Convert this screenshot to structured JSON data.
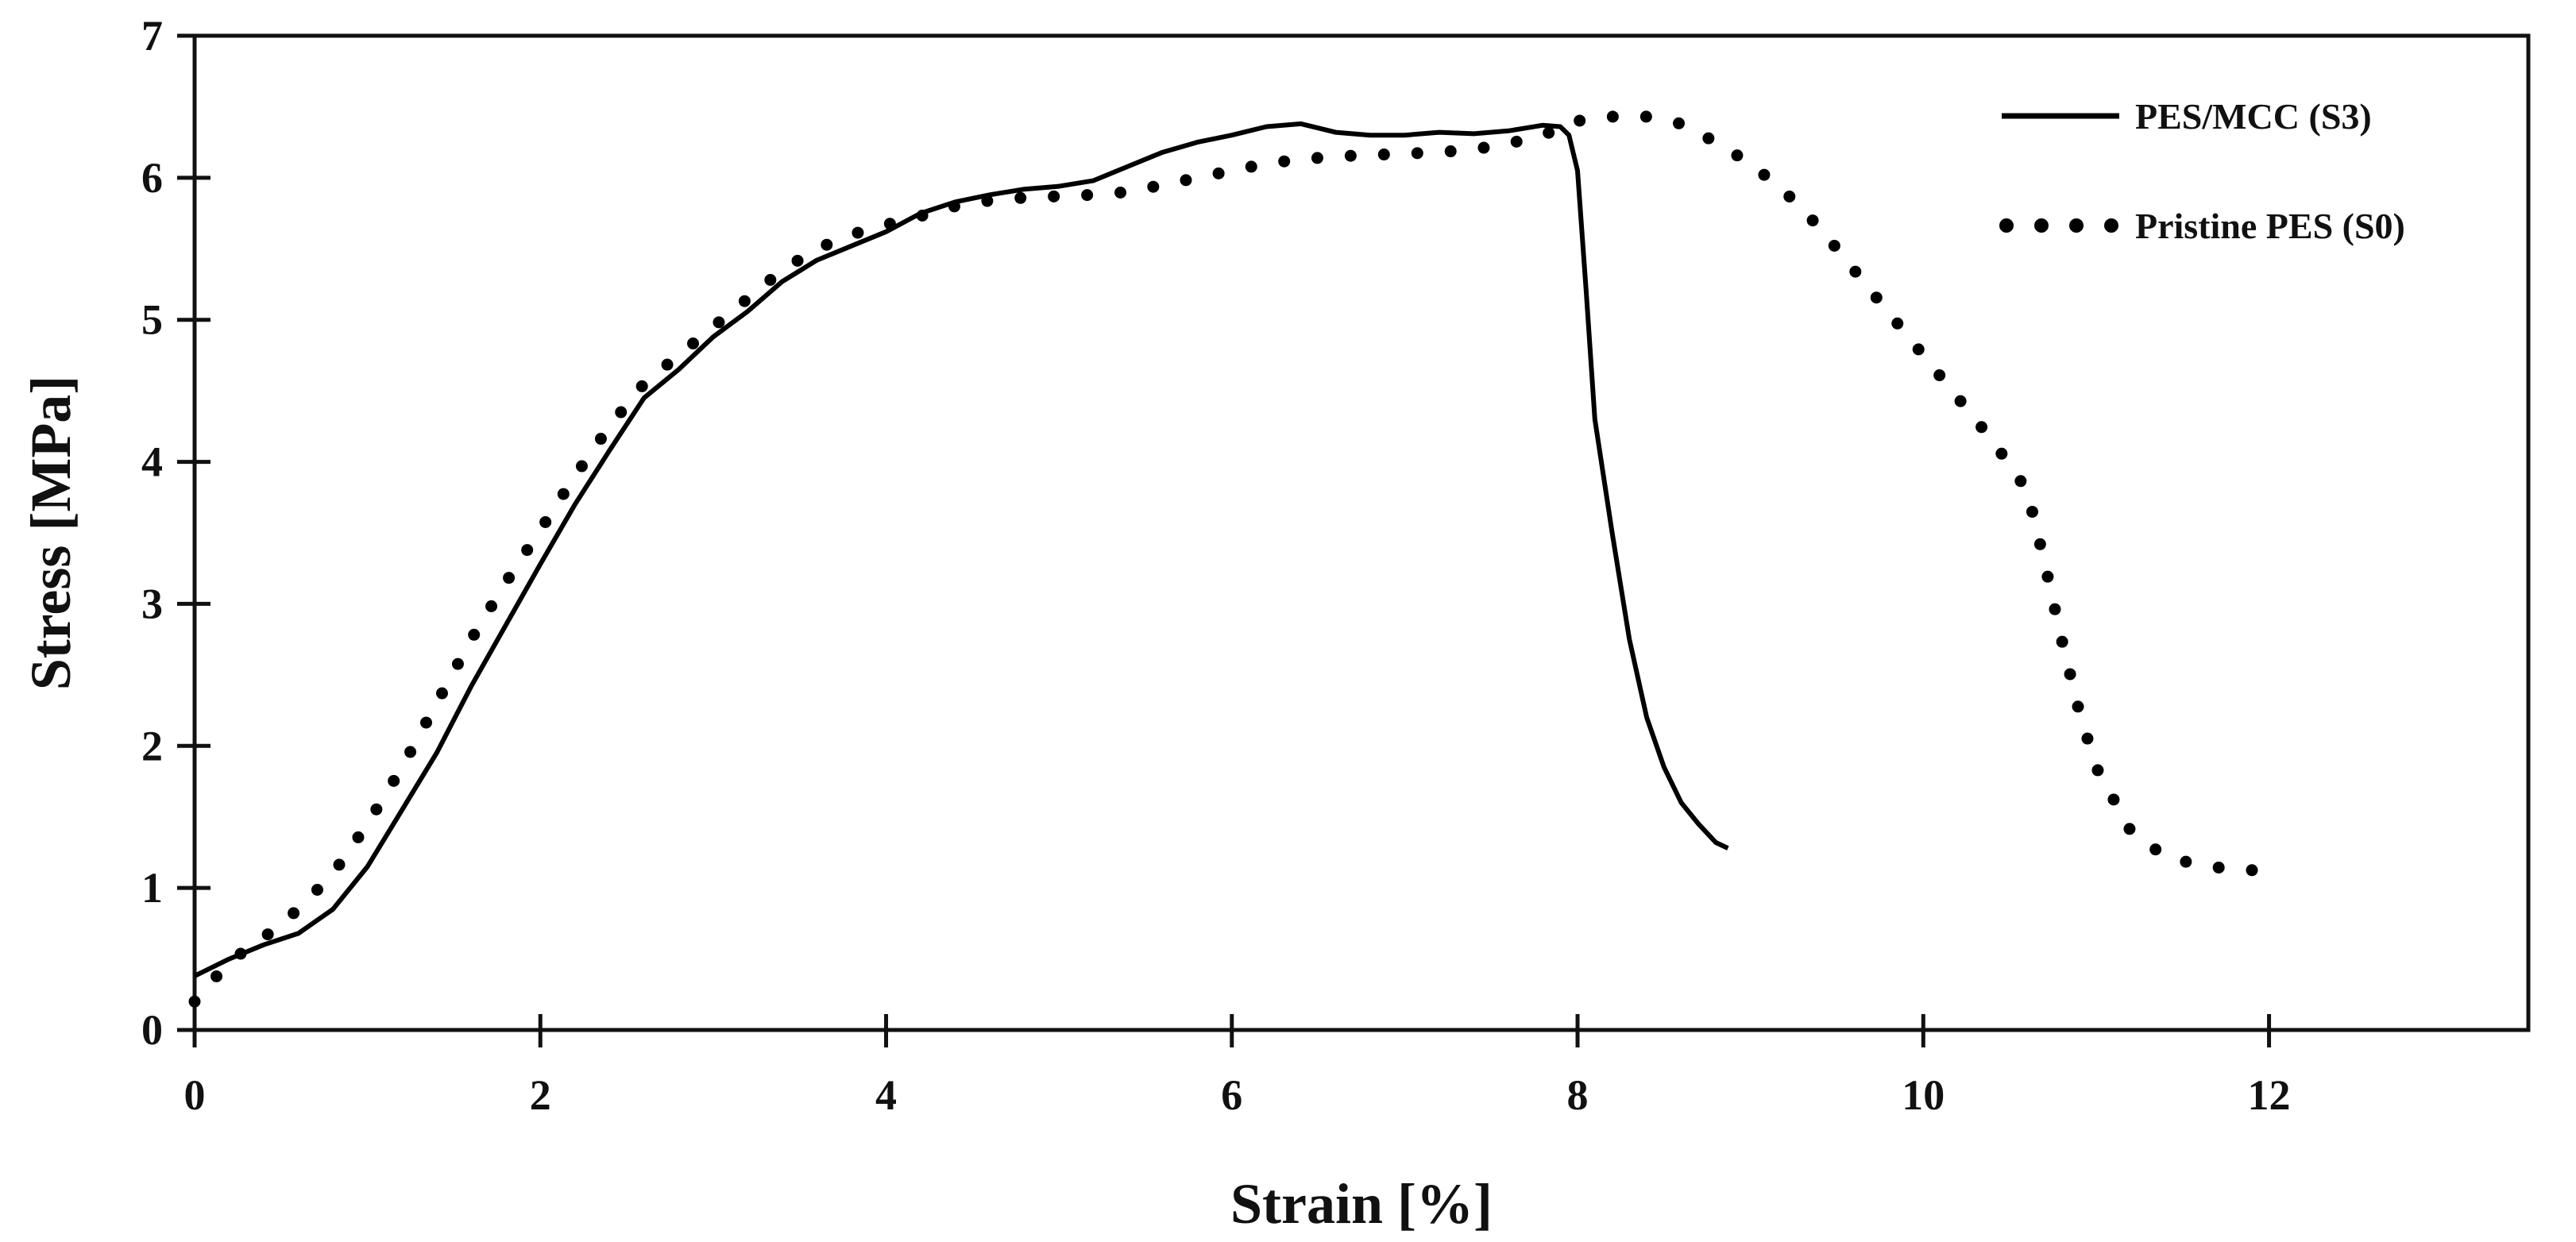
{
  "chart_data": {
    "type": "line",
    "title": "",
    "xlabel": "Strain [%]",
    "ylabel": "Stress [MPa]",
    "xlim": [
      0,
      13.5
    ],
    "ylim": [
      0,
      7
    ],
    "xticks": [
      0,
      2,
      4,
      6,
      8,
      10,
      12
    ],
    "xtick_labels": [
      "0",
      "2",
      "4",
      "6",
      "8",
      "10",
      "12"
    ],
    "yticks": [
      0,
      1,
      2,
      3,
      4,
      5,
      6,
      7
    ],
    "ytick_labels": [
      "0",
      "1",
      "2",
      "3",
      "4",
      "5",
      "6",
      "7"
    ],
    "grid": false,
    "legend_position": "top-right",
    "series": [
      {
        "name": "PES/MCC (S3)",
        "style": "solid",
        "color": "#000000",
        "x": [
          0,
          0.2,
          0.4,
          0.6,
          0.8,
          1.0,
          1.2,
          1.4,
          1.6,
          1.8,
          2.0,
          2.2,
          2.4,
          2.6,
          2.8,
          3.0,
          3.2,
          3.4,
          3.6,
          3.8,
          4.0,
          4.2,
          4.4,
          4.6,
          4.8,
          5.0,
          5.2,
          5.4,
          5.6,
          5.8,
          6.0,
          6.2,
          6.4,
          6.6,
          6.8,
          7.0,
          7.2,
          7.4,
          7.6,
          7.8,
          7.9,
          7.95,
          8.0,
          8.05,
          8.1,
          8.2,
          8.3,
          8.4,
          8.5,
          8.6,
          8.7,
          8.8,
          8.87
        ],
        "y": [
          0.38,
          0.5,
          0.6,
          0.68,
          0.85,
          1.15,
          1.55,
          1.95,
          2.42,
          2.85,
          3.28,
          3.7,
          4.08,
          4.45,
          4.65,
          4.88,
          5.06,
          5.27,
          5.42,
          5.52,
          5.62,
          5.75,
          5.83,
          5.88,
          5.92,
          5.94,
          5.98,
          6.08,
          6.18,
          6.25,
          6.3,
          6.36,
          6.38,
          6.32,
          6.3,
          6.3,
          6.32,
          6.31,
          6.33,
          6.37,
          6.36,
          6.3,
          6.05,
          5.2,
          4.3,
          3.5,
          2.75,
          2.2,
          1.85,
          1.6,
          1.45,
          1.32,
          1.28
        ]
      },
      {
        "name": "Pristine PES (S0)",
        "style": "dotted",
        "color": "#000000",
        "x": [
          0,
          0.2,
          0.4,
          0.6,
          0.8,
          1.0,
          1.2,
          1.4,
          1.6,
          1.8,
          2.0,
          2.2,
          2.4,
          2.6,
          2.8,
          3.0,
          3.2,
          3.4,
          3.6,
          3.8,
          4.0,
          4.2,
          4.4,
          4.6,
          4.8,
          5.0,
          5.2,
          5.4,
          5.6,
          5.8,
          6.0,
          6.2,
          6.4,
          6.6,
          6.8,
          7.0,
          7.2,
          7.4,
          7.6,
          7.8,
          8.0,
          8.2,
          8.4,
          8.6,
          8.8,
          9.0,
          9.2,
          9.4,
          9.6,
          9.8,
          10.0,
          10.2,
          10.4,
          10.6,
          10.7,
          10.8,
          10.9,
          11.0,
          11.2,
          11.4,
          11.6,
          11.8,
          12.0
        ],
        "y": [
          0.2,
          0.48,
          0.65,
          0.85,
          1.1,
          1.45,
          1.85,
          2.3,
          2.75,
          3.15,
          3.52,
          3.9,
          4.25,
          4.55,
          4.75,
          4.95,
          5.15,
          5.35,
          5.5,
          5.6,
          5.67,
          5.73,
          5.8,
          5.84,
          5.86,
          5.87,
          5.88,
          5.9,
          5.95,
          6.0,
          6.05,
          6.1,
          6.13,
          6.15,
          6.16,
          6.17,
          6.18,
          6.2,
          6.24,
          6.3,
          6.4,
          6.43,
          6.43,
          6.38,
          6.25,
          6.1,
          5.9,
          5.65,
          5.35,
          5.05,
          4.75,
          4.45,
          4.15,
          3.8,
          3.3,
          2.75,
          2.25,
          1.85,
          1.4,
          1.22,
          1.16,
          1.13,
          1.12
        ]
      }
    ]
  }
}
